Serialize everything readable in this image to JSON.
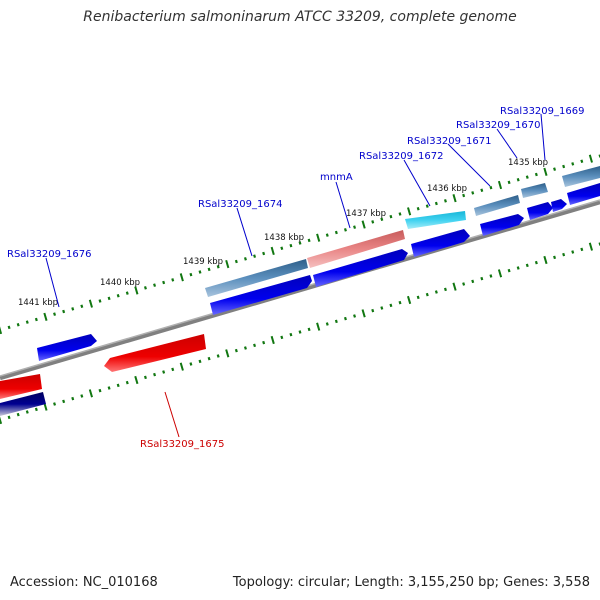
{
  "title": "Renibacterium salmoninarum ATCC 33209, complete genome",
  "footer": {
    "accession": "Accession: NC_010168",
    "summary": "Topology: circular; Length: 3,155,250 bp; Genes: 3,558"
  },
  "scale": [
    {
      "label": "1435 kbp"
    },
    {
      "label": "1436 kbp"
    },
    {
      "label": "1437 kbp"
    },
    {
      "label": "1438 kbp"
    },
    {
      "label": "1439 kbp"
    },
    {
      "label": "1440 kbp"
    },
    {
      "label": "1441 kbp"
    }
  ],
  "gene_labels": [
    {
      "text": "RSal33209_1669",
      "strand": "forward"
    },
    {
      "text": "RSal33209_1670",
      "strand": "forward"
    },
    {
      "text": "RSal33209_1671",
      "strand": "forward"
    },
    {
      "text": "RSal33209_1672",
      "strand": "forward"
    },
    {
      "text": "mnmA",
      "strand": "forward"
    },
    {
      "text": "RSal33209_1674",
      "strand": "forward"
    },
    {
      "text": "RSal33209_1676",
      "strand": "forward"
    },
    {
      "text": "RSal33209_1675",
      "strand": "reverse"
    }
  ],
  "colors": {
    "forward_label": "#0000cc",
    "reverse_label": "#cc0000",
    "cds_forward": "#0000ee",
    "cds_reverse": "#ee0000",
    "gene_feature": "#4a7eaa",
    "trna_feature": "#e57373",
    "cyan_feature": "#22ccee",
    "dark_feature": "#000080",
    "backbone": "#808080",
    "tick": "#117711"
  }
}
